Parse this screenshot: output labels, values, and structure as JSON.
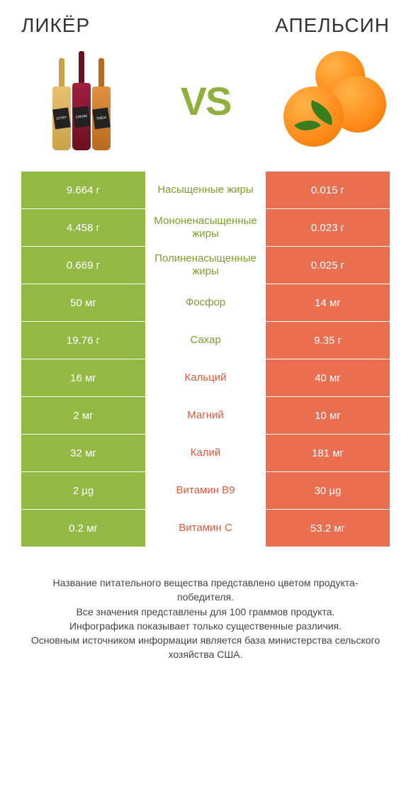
{
  "colors": {
    "green": "#94b844",
    "orange": "#ea6f51",
    "text_green": "#7a9e2e",
    "text_orange": "#d85a3e",
    "white": "#ffffff"
  },
  "header": {
    "left_title": "ЛИКЁР",
    "right_title": "АПЕЛЬСИН",
    "vs_text": "VS"
  },
  "rows": [
    {
      "left": "9.664 г",
      "label": "Насыщенные жиры",
      "right": "0.015 г",
      "winner": "left"
    },
    {
      "left": "4.458 г",
      "label": "Мононенасыщенные жиры",
      "right": "0.023 г",
      "winner": "left"
    },
    {
      "left": "0.669 г",
      "label": "Полиненасыщенные жиры",
      "right": "0.025 г",
      "winner": "left"
    },
    {
      "left": "50 мг",
      "label": "Фосфор",
      "right": "14 мг",
      "winner": "left"
    },
    {
      "left": "19.76 г",
      "label": "Сахар",
      "right": "9.35 г",
      "winner": "left"
    },
    {
      "left": "16 мг",
      "label": "Кальций",
      "right": "40 мг",
      "winner": "right"
    },
    {
      "left": "2 мг",
      "label": "Магний",
      "right": "10 мг",
      "winner": "right"
    },
    {
      "left": "32 мг",
      "label": "Калий",
      "right": "181 мг",
      "winner": "right"
    },
    {
      "left": "2 µg",
      "label": "Витамин B9",
      "right": "30 µg",
      "winner": "right"
    },
    {
      "left": "0.2 мг",
      "label": "Витамин C",
      "right": "53.2 мг",
      "winner": "right"
    }
  ],
  "footer": {
    "line1": "Название питательного вещества представлено цветом продукта-победителя.",
    "line2": "Все значения представлены для 100 граммов продукта.",
    "line3": "Инфографика показывает только существенные различия.",
    "line4": "Основным источником информации является база министерства сельского хозяйства США."
  },
  "bottle_labels": [
    "CITRY",
    "CRISM",
    "THEIA"
  ],
  "bottle_colors": {
    "b1_neck": "#c9a24a",
    "b1_body": "#d4a84e",
    "b2_neck": "#6b1020",
    "b2_body": "#8a1730",
    "b3_neck": "#b86a20",
    "b3_body": "#cc7a28"
  }
}
